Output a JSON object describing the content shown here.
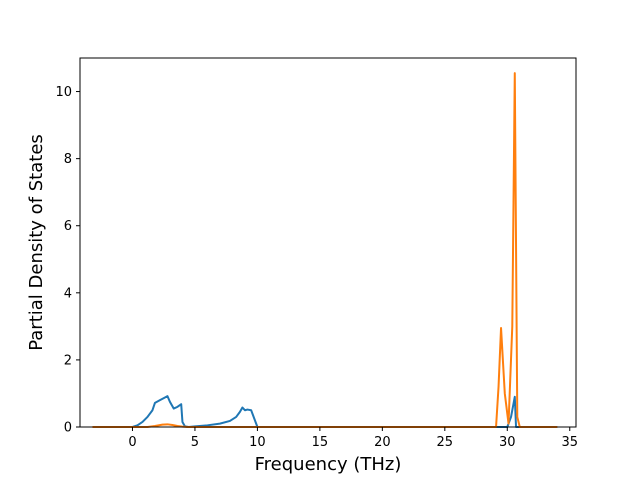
{
  "chart_data": {
    "type": "line",
    "title": "",
    "xlabel": "Frequency (THz)",
    "ylabel": "Partial Density of States",
    "xlim": [
      -4.2,
      35.5
    ],
    "ylim": [
      0,
      11.0
    ],
    "xticks": [
      0,
      5,
      10,
      15,
      20,
      25,
      30,
      35
    ],
    "yticks": [
      0,
      2,
      4,
      6,
      8,
      10
    ],
    "grid": false,
    "legend": "none",
    "series": [
      {
        "color": "#1f77b4",
        "x": [
          -3.2,
          0.0,
          0.4,
          0.8,
          1.2,
          1.6,
          1.8,
          2.2,
          2.6,
          2.8,
          3.0,
          3.3,
          3.6,
          3.9,
          4.0,
          4.2,
          4.5,
          5.0,
          6.0,
          7.0,
          7.8,
          8.3,
          8.6,
          8.8,
          9.0,
          9.2,
          9.5,
          9.9,
          10.0,
          29.3,
          30.0,
          30.3,
          30.5,
          30.6,
          30.7,
          31.0,
          34.0
        ],
        "y": [
          0,
          0,
          0.05,
          0.15,
          0.3,
          0.5,
          0.72,
          0.8,
          0.88,
          0.92,
          0.75,
          0.55,
          0.6,
          0.68,
          0.15,
          0.02,
          0,
          0.02,
          0.05,
          0.1,
          0.18,
          0.3,
          0.45,
          0.58,
          0.5,
          0.52,
          0.5,
          0.1,
          0,
          0,
          0,
          0.3,
          0.7,
          0.9,
          0,
          0,
          0
        ]
      },
      {
        "color": "#ff7f0e",
        "x": [
          -3.2,
          1.2,
          1.8,
          2.4,
          2.8,
          3.2,
          3.6,
          4.0,
          4.4,
          29.1,
          29.3,
          29.5,
          29.8,
          30.1,
          30.4,
          30.6,
          30.8,
          31.0,
          34.0
        ],
        "y": [
          0,
          0,
          0.03,
          0.07,
          0.08,
          0.06,
          0.03,
          0.01,
          0,
          0,
          1.2,
          2.95,
          1.0,
          0.1,
          3.0,
          10.55,
          0.3,
          0,
          0
        ]
      }
    ]
  }
}
